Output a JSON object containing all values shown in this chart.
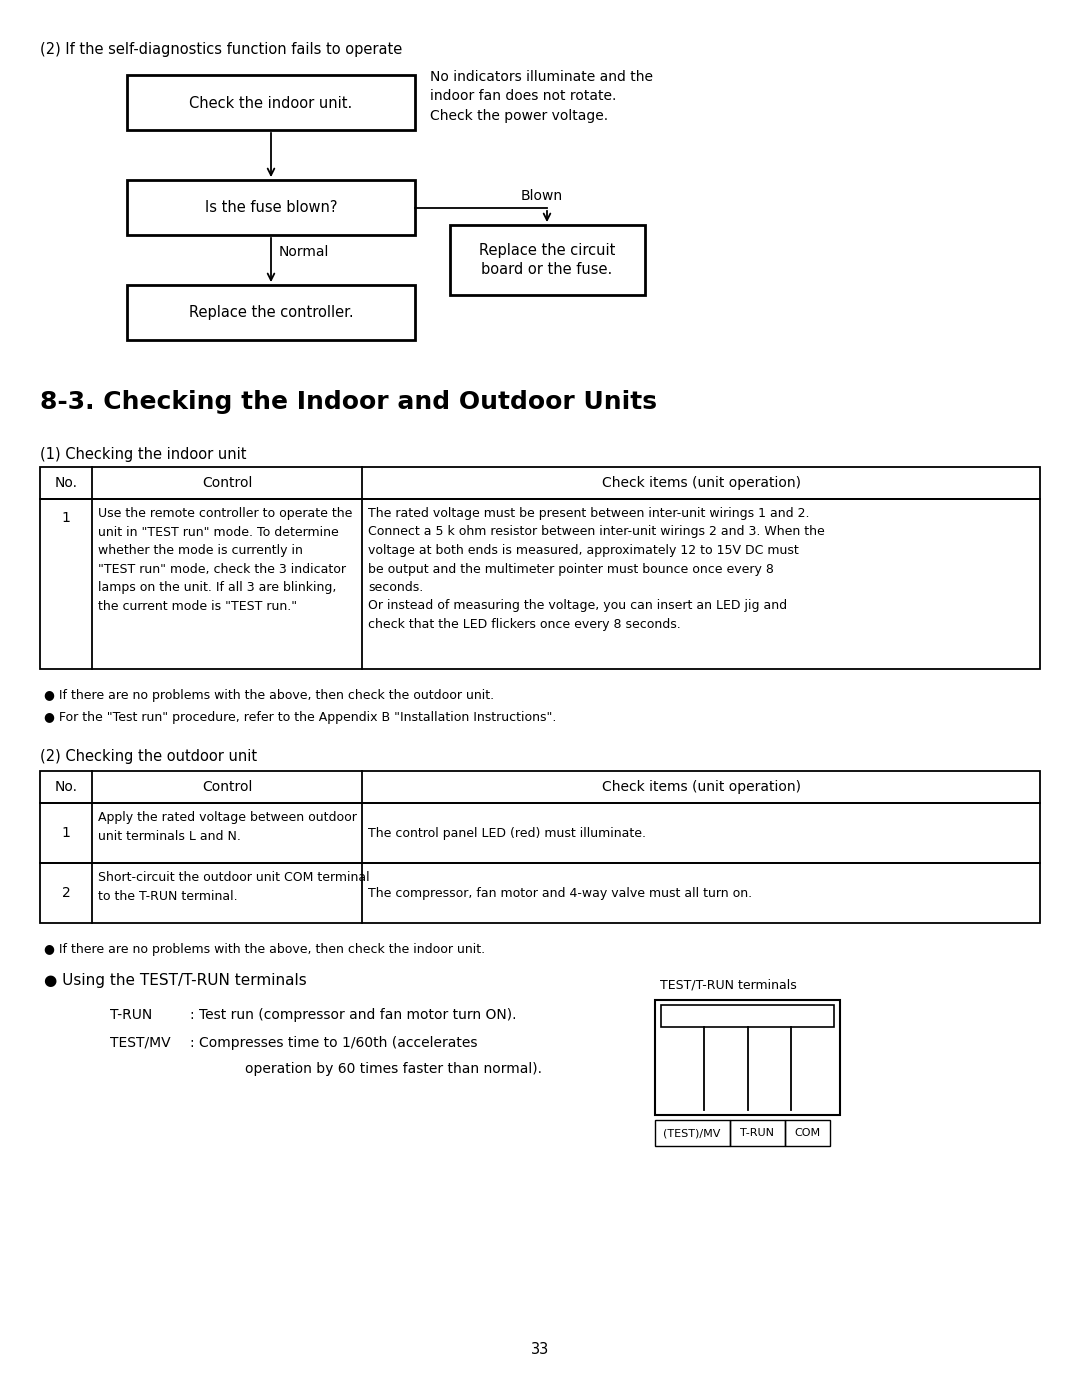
{
  "bg_color": "#ffffff",
  "page_number": "33",
  "flowchart_title": "(2) If the self-diagnostics function fails to operate",
  "note_text": "No indicators illuminate and the\nindoor fan does not rotate.\nCheck the power voltage.",
  "box1_text": "Check the indoor unit.",
  "box2_text": "Is the fuse blown?",
  "box3_text": "Replace the controller.",
  "box4_text": "Replace the circuit\nboard or the fuse.",
  "blown_label": "Blown",
  "normal_label": "Normal",
  "section_title": "8-3. Checking the Indoor and Outdoor Units",
  "indoor_heading": "(1) Checking the indoor unit",
  "outdoor_heading": "(2) Checking the outdoor unit",
  "col_headers": [
    "No.",
    "Control",
    "Check items (unit operation)"
  ],
  "indoor_row1_no": "1",
  "indoor_row1_ctrl": "Use the remote controller to operate the\nunit in \"TEST run\" mode. To determine\nwhether the mode is currently in\n\"TEST run\" mode, check the 3 indicator\nlamps on the unit. If all 3 are blinking,\nthe current mode is \"TEST run.\"",
  "indoor_row1_check": "The rated voltage must be present between inter-unit wirings 1 and 2.\nConnect a 5 k ohm resistor between inter-unit wirings 2 and 3. When the\nvoltage at both ends is measured, approximately 12 to 15V DC must\nbe output and the multimeter pointer must bounce once every 8\nseconds.\nOr instead of measuring the voltage, you can insert an LED jig and\ncheck that the LED flickers once every 8 seconds.",
  "indoor_bullet1": "● If there are no problems with the above, then check the outdoor unit.",
  "indoor_bullet2": "● For the \"Test run\" procedure, refer to the Appendix B \"Installation Instructions\".",
  "outdoor_row1_no": "1",
  "outdoor_row1_ctrl": "Apply the rated voltage between outdoor\nunit terminals L and N.",
  "outdoor_row1_check": "The control panel LED (red) must illuminate.",
  "outdoor_row2_no": "2",
  "outdoor_row2_ctrl": "Short-circuit the outdoor unit COM terminal\nto the T-RUN terminal.",
  "outdoor_row2_check": "The compressor, fan motor and 4-way valve must all turn on.",
  "outdoor_bullet1": "● If there are no problems with the above, then check the indoor unit.",
  "test_bullet": "● Using the TEST/T-RUN terminals",
  "t_run_label": "T-RUN",
  "t_run_text": ": Test run (compressor and fan motor turn ON).",
  "test_mv_label": "TEST/MV",
  "test_mv_text1": ": Compresses time to 1/60th (accelerates",
  "test_mv_text2": "operation by 60 times faster than normal).",
  "terminal_title": "TEST/T-RUN terminals",
  "terminal_labels": [
    "(TEST)/MV",
    "T-RUN",
    "COM"
  ]
}
